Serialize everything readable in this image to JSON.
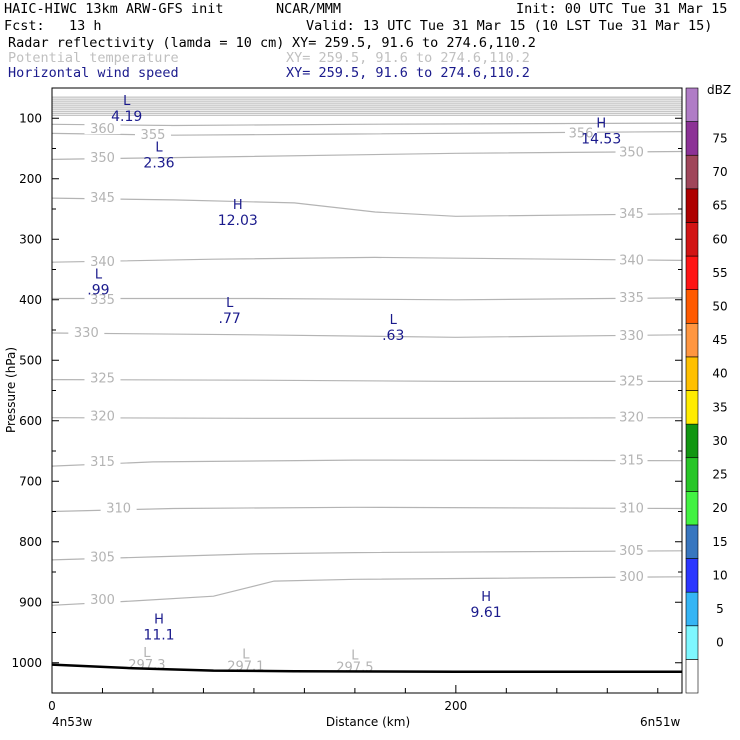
{
  "header": {
    "model": "HAIC-HIWC 13km ARW-GFS init",
    "org": "NCAR/MMM",
    "init": "Init: 00 UTC Tue 31 Mar 15",
    "fcst": "Fcst:   13 h",
    "valid": "Valid: 13 UTC Tue 31 Mar 15 (10 LST Tue 31 Mar 15)",
    "field1_name": "Radar reflectivity (lamda = 10 cm)",
    "field1_xy": "XY= 259.5, 91.6 to 274.6,110.2",
    "field2_name": "Potential temperature",
    "field2_xy": "XY= 259.5, 91.6 to 274.6,110.2",
    "field3_name": "Horizontal wind speed",
    "field3_xy": "XY= 259.5, 91.6 to 274.6,110.2"
  },
  "colors": {
    "theta": "#b4b4b4",
    "wind": "#1a1a8c",
    "ground": "#000000",
    "frame": "#000000"
  },
  "chart_data": {
    "type": "cross-section",
    "xlabel": "Distance (km)",
    "ylabel": "Pressure (hPa)",
    "xlim": [
      0,
      312
    ],
    "ylim": [
      1050,
      50
    ],
    "x_ticks": [
      0,
      200
    ],
    "x_minor_step": 25,
    "y_ticks": [
      100,
      200,
      300,
      400,
      500,
      600,
      700,
      800,
      900,
      1000
    ],
    "endpoint_left": "4n53w",
    "endpoint_right": "6n51w",
    "colorbar": {
      "unit": "dBZ",
      "levels": [
        "0",
        "5",
        "10",
        "15",
        "20",
        "25",
        "30",
        "35",
        "40",
        "45",
        "50",
        "55",
        "60",
        "65",
        "70",
        "75"
      ],
      "colors": [
        "#ffffff",
        "#7ef7ff",
        "#35b5f5",
        "#2b36ff",
        "#3876bf",
        "#42f242",
        "#27c627",
        "#119611",
        "#ffec00",
        "#ffc000",
        "#ff9640",
        "#ff5a00",
        "#ff1414",
        "#d21414",
        "#ae0000",
        "#a0465a",
        "#8c3296",
        "#b07cc6"
      ]
    },
    "ground_surface": [
      {
        "x": 0,
        "p": 1003
      },
      {
        "x": 40,
        "p": 1009
      },
      {
        "x": 80,
        "p": 1013
      },
      {
        "x": 120,
        "p": 1014
      },
      {
        "x": 200,
        "p": 1015
      },
      {
        "x": 312,
        "p": 1015
      }
    ],
    "theta_contours": [
      {
        "level": "360",
        "label_x": 25,
        "label_p": 118,
        "points": [
          [
            0,
            110
          ],
          [
            60,
            112
          ],
          [
            150,
            110
          ],
          [
            312,
            108
          ]
        ]
      },
      {
        "level": "355",
        "label_x": 50,
        "label_p": 128,
        "points": [
          [
            0,
            125
          ],
          [
            60,
            128
          ],
          [
            150,
            126
          ],
          [
            312,
            122
          ]
        ]
      },
      {
        "level": "350",
        "label_x": 25,
        "label_p": 166,
        "points": [
          [
            0,
            168
          ],
          [
            60,
            165
          ],
          [
            200,
            158
          ],
          [
            312,
            155
          ]
        ]
      },
      {
        "level": "345",
        "label_x": 25,
        "label_p": 232,
        "points": [
          [
            0,
            232
          ],
          [
            60,
            235
          ],
          [
            120,
            240
          ],
          [
            160,
            255
          ],
          [
            200,
            262
          ],
          [
            312,
            258
          ]
        ]
      },
      {
        "level": "340",
        "label_x": 25,
        "label_p": 338,
        "points": [
          [
            0,
            338
          ],
          [
            80,
            333
          ],
          [
            160,
            330
          ],
          [
            312,
            335
          ]
        ]
      },
      {
        "level": "335",
        "label_x": 25,
        "label_p": 400,
        "points": [
          [
            0,
            398
          ],
          [
            100,
            398
          ],
          [
            200,
            400
          ],
          [
            312,
            397
          ]
        ]
      },
      {
        "level": "330",
        "label_x": 17,
        "label_p": 455,
        "points": [
          [
            0,
            455
          ],
          [
            100,
            458
          ],
          [
            200,
            462
          ],
          [
            312,
            458
          ]
        ]
      },
      {
        "level": "325",
        "label_x": 25,
        "label_p": 530,
        "points": [
          [
            0,
            532
          ],
          [
            100,
            533
          ],
          [
            200,
            535
          ],
          [
            312,
            535
          ]
        ]
      },
      {
        "level": "320",
        "label_x": 25,
        "label_p": 593,
        "points": [
          [
            0,
            595
          ],
          [
            100,
            596
          ],
          [
            200,
            596
          ],
          [
            312,
            595
          ]
        ]
      },
      {
        "level": "315",
        "label_x": 25,
        "label_p": 668,
        "points": [
          [
            0,
            675
          ],
          [
            50,
            668
          ],
          [
            150,
            665
          ],
          [
            312,
            666
          ]
        ]
      },
      {
        "level": "310",
        "label_x": 33,
        "label_p": 745,
        "points": [
          [
            0,
            750
          ],
          [
            60,
            745
          ],
          [
            150,
            743
          ],
          [
            312,
            745
          ]
        ]
      },
      {
        "level": "305",
        "label_x": 25,
        "label_p": 826,
        "points": [
          [
            0,
            830
          ],
          [
            50,
            825
          ],
          [
            100,
            820
          ],
          [
            150,
            818
          ],
          [
            312,
            815
          ]
        ]
      },
      {
        "level": "300",
        "label_x": 25,
        "label_p": 896,
        "points": [
          [
            0,
            905
          ],
          [
            40,
            898
          ],
          [
            80,
            890
          ],
          [
            110,
            865
          ],
          [
            150,
            862
          ],
          [
            312,
            858
          ]
        ]
      },
      {
        "level": "297.5",
        "label_x": 150,
        "label_p": 1008,
        "points": []
      },
      {
        "level": "297.1",
        "label_x": 96,
        "label_p": 1006,
        "points": []
      },
      {
        "level": "297.3",
        "label_x": 47,
        "label_p": 1004,
        "points": []
      }
    ],
    "upper_band": {
      "p_top": 65,
      "p_bottom": 95,
      "count": 10
    },
    "right_labels": [
      {
        "level": "356",
        "x": 262,
        "p": 125
      },
      {
        "level": "350",
        "x": 287,
        "p": 157
      },
      {
        "level": "345",
        "x": 287,
        "p": 258
      },
      {
        "level": "340",
        "x": 287,
        "p": 335
      },
      {
        "level": "335",
        "x": 287,
        "p": 397
      },
      {
        "level": "330",
        "x": 287,
        "p": 460
      },
      {
        "level": "325",
        "x": 287,
        "p": 535
      },
      {
        "level": "320",
        "x": 287,
        "p": 595
      },
      {
        "level": "315",
        "x": 287,
        "p": 666
      },
      {
        "level": "310",
        "x": 287,
        "p": 745
      },
      {
        "level": "305",
        "x": 287,
        "p": 815
      },
      {
        "level": "300",
        "x": 287,
        "p": 858
      }
    ],
    "wind_extrema": [
      {
        "type": "L",
        "value": "4.19",
        "x": 37,
        "p": 78
      },
      {
        "type": "L",
        "value": "2.36",
        "x": 53,
        "p": 155
      },
      {
        "type": "H",
        "value": "12.03",
        "x": 92,
        "p": 250
      },
      {
        "type": "L",
        "value": ".99",
        "x": 23,
        "p": 365
      },
      {
        "type": "L",
        "value": ".77",
        "x": 88,
        "p": 412
      },
      {
        "type": "L",
        "value": ".63",
        "x": 169,
        "p": 440
      },
      {
        "type": "H",
        "value": "9.61",
        "x": 215,
        "p": 898
      },
      {
        "type": "H",
        "value": "11.1",
        "x": 53,
        "p": 935
      },
      {
        "type": "H",
        "value": "14.53",
        "x": 272,
        "p": 115
      }
    ]
  }
}
